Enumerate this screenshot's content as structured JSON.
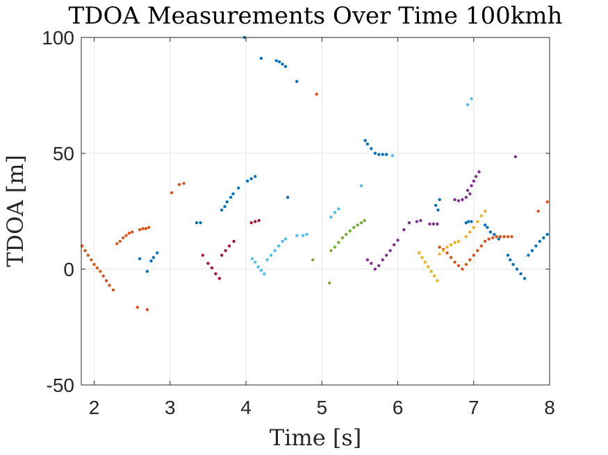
{
  "chart_data": {
    "type": "scatter",
    "title": "TDOA Measurements Over Time 100kmh",
    "xlabel": "Time [s]",
    "ylabel": "TDOA [m]",
    "xlim": [
      1.83,
      8.0
    ],
    "ylim": [
      -50,
      100
    ],
    "xticks": [
      2,
      3,
      4,
      5,
      6,
      7,
      8
    ],
    "yticks": [
      -50,
      0,
      50,
      100
    ],
    "xtick_labels": [
      "2",
      "3",
      "4",
      "5",
      "6",
      "7",
      "8"
    ],
    "ytick_labels": [
      "-50",
      "0",
      "50",
      "100"
    ],
    "grid": true,
    "legend": "none",
    "series": [
      {
        "color": "#0072BD",
        "points": [
          [
            2.6,
            4.5
          ],
          [
            2.7,
            -1.0
          ],
          [
            2.75,
            3.5
          ],
          [
            2.78,
            5.0
          ],
          [
            2.83,
            7.0
          ],
          [
            3.35,
            20.0
          ],
          [
            3.4,
            20.0
          ],
          [
            3.68,
            25.5
          ],
          [
            3.72,
            27.0
          ],
          [
            3.75,
            29.0
          ],
          [
            3.8,
            31.0
          ],
          [
            3.83,
            32.5
          ],
          [
            3.9,
            35.0
          ],
          [
            4.02,
            38.0
          ],
          [
            4.07,
            39.0
          ],
          [
            4.12,
            40.0
          ],
          [
            3.98,
            100.0
          ],
          [
            4.2,
            91.0
          ],
          [
            4.4,
            90.0
          ],
          [
            4.44,
            89.5
          ],
          [
            4.48,
            88.5
          ],
          [
            4.52,
            87.5
          ],
          [
            4.67,
            81.0
          ],
          [
            4.55,
            31.0
          ],
          [
            5.57,
            55.5
          ],
          [
            5.6,
            54.0
          ],
          [
            5.65,
            52.0
          ],
          [
            5.7,
            50.0
          ],
          [
            5.75,
            49.5
          ],
          [
            5.8,
            49.5
          ],
          [
            5.85,
            49.5
          ],
          [
            6.5,
            27.5
          ],
          [
            6.53,
            25.5
          ],
          [
            6.55,
            30.0
          ],
          [
            6.9,
            20.0
          ],
          [
            6.93,
            20.5
          ],
          [
            6.97,
            20.5
          ],
          [
            7.15,
            19.0
          ],
          [
            7.18,
            18.0
          ],
          [
            7.22,
            16.0
          ],
          [
            7.27,
            15.0
          ],
          [
            7.33,
            13.0
          ],
          [
            7.45,
            6.0
          ],
          [
            7.48,
            4.0
          ],
          [
            7.52,
            2.0
          ],
          [
            7.57,
            0.0
          ],
          [
            7.62,
            -2.0
          ],
          [
            7.67,
            -4.0
          ],
          [
            7.72,
            6.0
          ],
          [
            7.77,
            8.0
          ],
          [
            7.82,
            10.0
          ],
          [
            7.87,
            12.0
          ],
          [
            7.92,
            13.5
          ],
          [
            7.97,
            15.0
          ]
        ]
      },
      {
        "color": "#D95319",
        "points": [
          [
            1.84,
            10.0
          ],
          [
            1.88,
            8.0
          ],
          [
            1.92,
            6.0
          ],
          [
            1.96,
            4.0
          ],
          [
            2.0,
            2.0
          ],
          [
            2.04,
            0.5
          ],
          [
            2.08,
            -1.0
          ],
          [
            2.12,
            -3.0
          ],
          [
            2.16,
            -5.0
          ],
          [
            2.2,
            -7.0
          ],
          [
            2.25,
            -9.0
          ],
          [
            2.3,
            11.0
          ],
          [
            2.34,
            12.0
          ],
          [
            2.38,
            13.5
          ],
          [
            2.42,
            14.5
          ],
          [
            2.46,
            15.5
          ],
          [
            2.5,
            16.0
          ],
          [
            2.6,
            17.0
          ],
          [
            2.64,
            17.5
          ],
          [
            2.68,
            17.5
          ],
          [
            2.72,
            18.0
          ],
          [
            2.57,
            -16.5
          ],
          [
            2.7,
            -17.5
          ],
          [
            3.02,
            33.0
          ],
          [
            3.12,
            36.5
          ],
          [
            3.18,
            37.0
          ],
          [
            4.93,
            75.5
          ],
          [
            6.55,
            9.5
          ],
          [
            6.6,
            8.5
          ],
          [
            6.65,
            7.0
          ],
          [
            6.7,
            5.0
          ],
          [
            6.75,
            3.0
          ],
          [
            6.8,
            1.5
          ],
          [
            6.85,
            0.0
          ],
          [
            6.9,
            2.0
          ],
          [
            6.95,
            4.0
          ],
          [
            7.0,
            6.0
          ],
          [
            7.05,
            8.0
          ],
          [
            7.1,
            10.0
          ],
          [
            7.15,
            12.0
          ],
          [
            7.2,
            13.0
          ],
          [
            7.25,
            13.5
          ],
          [
            7.3,
            14.0
          ],
          [
            7.35,
            14.0
          ],
          [
            7.4,
            14.0
          ],
          [
            7.45,
            14.0
          ],
          [
            7.5,
            14.0
          ],
          [
            7.85,
            25.0
          ],
          [
            7.97,
            29.0
          ]
        ]
      },
      {
        "color": "#A2142F",
        "points": [
          [
            3.43,
            6.0
          ],
          [
            3.5,
            2.5
          ],
          [
            3.55,
            0.5
          ],
          [
            3.6,
            -2.0
          ],
          [
            3.65,
            -4.0
          ],
          [
            3.68,
            6.0
          ],
          [
            3.73,
            8.0
          ],
          [
            3.78,
            10.0
          ],
          [
            3.84,
            12.0
          ],
          [
            4.07,
            20.0
          ],
          [
            4.12,
            20.5
          ],
          [
            4.17,
            21.0
          ]
        ]
      },
      {
        "color": "#4DBEEE",
        "points": [
          [
            4.08,
            4.5
          ],
          [
            4.12,
            3.0
          ],
          [
            4.16,
            1.0
          ],
          [
            4.2,
            -0.5
          ],
          [
            4.24,
            -2.0
          ],
          [
            4.28,
            4.0
          ],
          [
            4.33,
            6.0
          ],
          [
            4.38,
            8.0
          ],
          [
            4.43,
            10.0
          ],
          [
            4.48,
            12.0
          ],
          [
            4.52,
            13.0
          ],
          [
            4.67,
            14.5
          ],
          [
            4.75,
            14.5
          ],
          [
            4.8,
            15.0
          ],
          [
            5.12,
            22.5
          ],
          [
            5.17,
            24.5
          ],
          [
            5.22,
            26.0
          ],
          [
            5.52,
            36.0
          ],
          [
            5.93,
            49.0
          ],
          [
            6.92,
            71.0
          ],
          [
            6.97,
            73.5
          ]
        ]
      },
      {
        "color": "#77AC30",
        "points": [
          [
            4.88,
            4.0
          ],
          [
            5.1,
            -6.0
          ],
          [
            5.12,
            8.0
          ],
          [
            5.17,
            9.5
          ],
          [
            5.22,
            11.5
          ],
          [
            5.27,
            13.5
          ],
          [
            5.32,
            15.0
          ],
          [
            5.37,
            16.5
          ],
          [
            5.42,
            18.0
          ],
          [
            5.47,
            19.0
          ],
          [
            5.52,
            20.0
          ],
          [
            5.56,
            21.0
          ]
        ]
      },
      {
        "color": "#7E2F8E",
        "points": [
          [
            5.6,
            4.0
          ],
          [
            5.65,
            2.5
          ],
          [
            5.7,
            0.0
          ],
          [
            5.75,
            1.5
          ],
          [
            5.8,
            4.0
          ],
          [
            5.85,
            6.0
          ],
          [
            5.9,
            8.0
          ],
          [
            5.95,
            10.5
          ],
          [
            6.0,
            12.5
          ],
          [
            6.08,
            17.0
          ],
          [
            6.15,
            20.0
          ],
          [
            6.25,
            20.5
          ],
          [
            6.3,
            21.0
          ],
          [
            6.42,
            19.5
          ],
          [
            6.47,
            19.5
          ],
          [
            6.52,
            19.5
          ],
          [
            6.75,
            30.0
          ],
          [
            6.8,
            29.5
          ],
          [
            6.85,
            30.0
          ],
          [
            6.9,
            31.0
          ],
          [
            6.95,
            32.5
          ],
          [
            6.92,
            34.0
          ],
          [
            6.97,
            36.0
          ],
          [
            7.0,
            38.0
          ],
          [
            7.03,
            40.0
          ],
          [
            7.07,
            42.0
          ],
          [
            7.55,
            48.5
          ]
        ]
      },
      {
        "color": "#EDB120",
        "points": [
          [
            6.28,
            7.0
          ],
          [
            6.32,
            5.0
          ],
          [
            6.36,
            3.0
          ],
          [
            6.4,
            1.0
          ],
          [
            6.44,
            -1.0
          ],
          [
            6.48,
            -3.0
          ],
          [
            6.52,
            -5.0
          ],
          [
            6.55,
            6.5
          ],
          [
            6.6,
            8.0
          ],
          [
            6.65,
            9.5
          ],
          [
            6.7,
            10.5
          ],
          [
            6.75,
            11.5
          ],
          [
            6.8,
            12.0
          ],
          [
            6.9,
            14.0
          ],
          [
            6.95,
            16.0
          ],
          [
            7.0,
            18.0
          ],
          [
            7.05,
            20.5
          ],
          [
            7.1,
            23.0
          ],
          [
            7.15,
            25.0
          ]
        ]
      }
    ]
  }
}
